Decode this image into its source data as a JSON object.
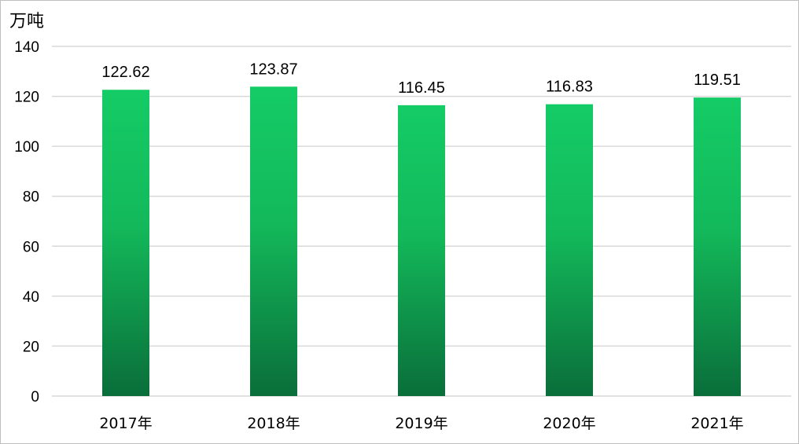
{
  "chart_data": {
    "type": "bar",
    "ylabel": "万吨",
    "categories": [
      "2017年",
      "2018年",
      "2019年",
      "2020年",
      "2021年"
    ],
    "values": [
      122.62,
      123.87,
      116.45,
      116.83,
      119.51
    ],
    "value_labels": [
      "122.62",
      "123.87",
      "116.45",
      "116.83",
      "119.51"
    ],
    "ylim": [
      0,
      140
    ],
    "yticks": [
      0,
      20,
      40,
      60,
      80,
      100,
      120,
      140
    ],
    "grid": true,
    "legend": "none",
    "bar_color_top": "#14cc66",
    "bar_color_bottom": "#0a6e3a"
  }
}
